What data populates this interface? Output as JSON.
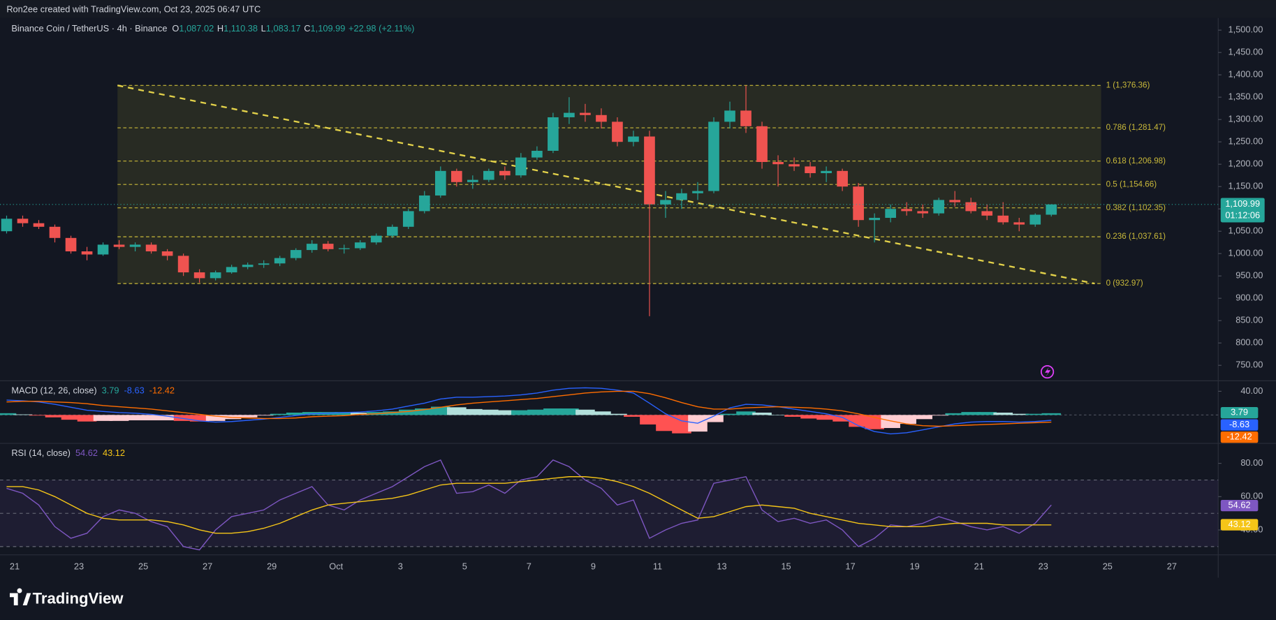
{
  "header": {
    "credit": "Ron2ee created with TradingView.com, Oct 23, 2025 06:47 UTC"
  },
  "footer": {
    "brand": "TradingView"
  },
  "time_axis": {
    "xlim": [
      20.544,
      58.443
    ],
    "xticks": [
      21,
      23,
      25,
      27,
      29,
      {
        "value": 31,
        "label": "Oct"
      },
      {
        "value": 33,
        "label": "3"
      },
      {
        "value": 35,
        "label": "5"
      },
      {
        "value": 37,
        "label": "7"
      },
      {
        "value": 39,
        "label": "9"
      },
      {
        "value": 41,
        "label": "11"
      },
      {
        "value": 43,
        "label": "13"
      },
      {
        "value": 45,
        "label": "15"
      },
      {
        "value": 47,
        "label": "17"
      },
      {
        "value": 49,
        "label": "19"
      },
      {
        "value": 51,
        "label": "21"
      },
      {
        "value": 53,
        "label": "23"
      },
      {
        "value": 55,
        "label": "25"
      },
      {
        "value": 57,
        "label": "27"
      }
    ]
  },
  "chart_data": [
    {
      "type": "candlestick",
      "legend": {
        "symbol": "Binance Coin / TetherUS · 4h · Binance",
        "ohlc": [
          {
            "key": "O",
            "value": "1,087.02"
          },
          {
            "key": "H",
            "value": "1,110.38"
          },
          {
            "key": "L",
            "value": "1,083.17"
          },
          {
            "key": "C",
            "value": "1,109.99"
          }
        ],
        "change": "+22.98 (+2.11%)"
      },
      "up_color": "#26a69a",
      "down_color": "#ef5350",
      "ylim": [
        715.4,
        1527.3
      ],
      "yticks": [
        {
          "value": 750,
          "label": "750.00"
        },
        {
          "value": 800,
          "label": "800.00"
        },
        {
          "value": 850,
          "label": "850.00"
        },
        {
          "value": 900,
          "label": "900.00"
        },
        {
          "value": 950,
          "label": "950.00"
        },
        {
          "value": 1000,
          "label": "1,000.00"
        },
        {
          "value": 1050,
          "label": "1,050.00"
        },
        {
          "value": 1100,
          "label": "1,100.00"
        },
        {
          "value": 1150,
          "label": "1,150.00"
        },
        {
          "value": 1200,
          "label": "1,200.00"
        },
        {
          "value": 1250,
          "label": "1,250.00"
        },
        {
          "value": 1300,
          "label": "1,300.00"
        },
        {
          "value": 1350,
          "label": "1,350.00"
        },
        {
          "value": 1400,
          "label": "1,400.00"
        },
        {
          "value": 1450,
          "label": "1,450.00"
        },
        {
          "value": 1500,
          "label": "1,500.00"
        }
      ],
      "x": [
        20.5,
        21,
        21.5,
        22,
        22.5,
        23,
        23.5,
        24,
        24.5,
        25,
        25.5,
        26,
        26.5,
        27,
        27.5,
        28,
        28.5,
        29,
        29.5,
        30,
        30.5,
        31,
        31.5,
        32,
        32.5,
        33,
        33.5,
        34,
        34.5,
        35,
        35.5,
        36,
        36.5,
        37,
        37.5,
        38,
        38.5,
        39,
        39.5,
        40,
        40.5,
        41,
        41.5,
        42,
        42.5,
        43,
        43.5,
        44,
        44.5,
        45,
        45.5,
        46,
        46.5,
        47,
        47.5,
        48,
        48.5,
        49,
        49.5,
        50,
        50.5,
        51,
        51.5,
        52,
        52.5,
        53
      ],
      "open": [
        1050,
        1078,
        1068,
        1060,
        1035,
        1005,
        998,
        1020,
        1015,
        1020,
        1005,
        995,
        958,
        945,
        958,
        970,
        975,
        978,
        990,
        1008,
        1022,
        1010,
        1012,
        1025,
        1040,
        1060,
        1095,
        1130,
        1185,
        1160,
        1165,
        1185,
        1175,
        1215,
        1230,
        1305,
        1315,
        1310,
        1295,
        1250,
        1262,
        1110,
        1120,
        1135,
        1140,
        1295,
        1320,
        1285,
        1205,
        1200,
        1195,
        1180,
        1185,
        1150,
        1075,
        1080,
        1100,
        1095,
        1090,
        1120,
        1115,
        1095,
        1085,
        1070,
        1065,
        1087
      ],
      "high": [
        1085,
        1085,
        1075,
        1065,
        1040,
        1015,
        1025,
        1030,
        1025,
        1025,
        1010,
        1000,
        965,
        962,
        975,
        980,
        985,
        995,
        1012,
        1030,
        1028,
        1020,
        1030,
        1045,
        1065,
        1100,
        1140,
        1195,
        1190,
        1175,
        1190,
        1195,
        1225,
        1240,
        1315,
        1350,
        1335,
        1325,
        1305,
        1275,
        1275,
        1140,
        1145,
        1160,
        1305,
        1340,
        1376,
        1295,
        1220,
        1215,
        1205,
        1195,
        1190,
        1158,
        1090,
        1110,
        1115,
        1110,
        1125,
        1140,
        1125,
        1110,
        1115,
        1080,
        1090,
        1110
      ],
      "low": [
        1045,
        1060,
        1055,
        1025,
        1000,
        985,
        995,
        1010,
        1005,
        1000,
        985,
        950,
        935,
        940,
        955,
        965,
        968,
        972,
        985,
        1002,
        1005,
        1000,
        1008,
        1020,
        1035,
        1055,
        1090,
        1125,
        1150,
        1145,
        1160,
        1165,
        1170,
        1210,
        1225,
        1290,
        1295,
        1280,
        1240,
        1240,
        860,
        1080,
        1100,
        1120,
        1135,
        1280,
        1270,
        1190,
        1150,
        1185,
        1170,
        1160,
        1140,
        1060,
        1025,
        1070,
        1085,
        1080,
        1085,
        1105,
        1090,
        1075,
        1065,
        1050,
        1060,
        1083
      ],
      "close": [
        1078,
        1068,
        1060,
        1035,
        1005,
        998,
        1020,
        1015,
        1020,
        1005,
        995,
        958,
        945,
        958,
        970,
        975,
        978,
        990,
        1008,
        1022,
        1010,
        1012,
        1025,
        1040,
        1060,
        1095,
        1130,
        1185,
        1160,
        1165,
        1185,
        1175,
        1215,
        1230,
        1305,
        1315,
        1310,
        1295,
        1250,
        1262,
        1110,
        1120,
        1135,
        1140,
        1295,
        1320,
        1285,
        1205,
        1200,
        1195,
        1180,
        1185,
        1150,
        1075,
        1080,
        1100,
        1095,
        1090,
        1120,
        1115,
        1095,
        1085,
        1070,
        1065,
        1087,
        1110
      ],
      "fib": {
        "x": [
          24.2,
          54.8
        ],
        "color": "#c9b93a",
        "fill": "rgba(120,118,40,0.22)",
        "levels": [
          {
            "value": 1376.36,
            "label": "1 (1,376.36)"
          },
          {
            "value": 1281.47,
            "label": "0.786 (1,281.47)"
          },
          {
            "value": 1206.98,
            "label": "0.618 (1,206.98)"
          },
          {
            "value": 1154.66,
            "label": "0.5 (1,154.66)"
          },
          {
            "value": 1102.35,
            "label": "0.382 (1,102.35)"
          },
          {
            "value": 1037.61,
            "label": "0.236 (1,037.61)"
          },
          {
            "value": 932.97,
            "label": "0 (932.97)"
          }
        ]
      },
      "trendline": {
        "x": [
          24.2,
          54.6
        ],
        "y": [
          1376.36,
          932.97
        ],
        "color": "#e3d24a"
      },
      "last_price": {
        "value": 1109.99,
        "label": "1,109.99",
        "countdown": "01:12:06",
        "color": "#26a69a"
      }
    },
    {
      "type": "macd",
      "title": "MACD (12, 26, close)",
      "ylim": [
        -48,
        55
      ],
      "yticks": [
        {
          "value": 40,
          "label": "40.00"
        }
      ],
      "macd_line": {
        "color": "#2962ff",
        "values": [
          25,
          24,
          22,
          18,
          13,
          8,
          6,
          4,
          3,
          1,
          -2,
          -6,
          -10,
          -12,
          -11,
          -9,
          -7,
          -4,
          -1,
          2,
          3,
          4,
          5,
          7,
          10,
          15,
          20,
          27,
          30,
          30,
          31,
          32,
          34,
          37,
          42,
          45,
          46,
          45,
          42,
          37,
          20,
          2,
          -10,
          -14,
          -2,
          12,
          18,
          17,
          14,
          10,
          6,
          2,
          -4,
          -18,
          -28,
          -32,
          -30,
          -25,
          -20,
          -15,
          -12,
          -11,
          -11,
          -12,
          -11,
          -9
        ]
      },
      "signal": {
        "color": "#ff6d00",
        "values": [
          22,
          23,
          23,
          22,
          21,
          19,
          16,
          14,
          12,
          10,
          7,
          4,
          1,
          -2,
          -4,
          -5,
          -6,
          -6,
          -5,
          -3,
          -2,
          -1,
          1,
          2,
          4,
          6,
          9,
          13,
          17,
          20,
          22,
          24,
          26,
          28,
          31,
          34,
          37,
          39,
          40,
          40,
          36,
          29,
          21,
          14,
          10,
          10,
          12,
          13,
          14,
          13,
          12,
          10,
          7,
          2,
          -4,
          -10,
          -15,
          -18,
          -19,
          -18,
          -17,
          -16,
          -15,
          -14,
          -13,
          -12
        ]
      },
      "histogram": {
        "colors": [
          "#26a69a",
          "#b2dfdb",
          "#ffcdd2",
          "#ff5252"
        ],
        "values": [
          3,
          1,
          -1,
          -4,
          -8,
          -11,
          -10,
          -10,
          -9,
          -9,
          -9,
          -10,
          -11,
          -10,
          -7,
          -4,
          -1,
          2,
          4,
          5,
          5,
          5,
          4,
          5,
          6,
          9,
          11,
          14,
          13,
          10,
          9,
          8,
          8,
          9,
          11,
          11,
          9,
          6,
          2,
          -3,
          -16,
          -27,
          -31,
          -28,
          -12,
          2,
          6,
          4,
          0,
          -3,
          -6,
          -8,
          -11,
          -20,
          -24,
          -22,
          -15,
          -7,
          -1,
          3,
          5,
          5,
          4,
          2,
          2,
          3
        ]
      },
      "last_values": [
        {
          "value": 3.79,
          "label": "3.79",
          "color": "#26a69a"
        },
        {
          "value": -8.63,
          "label": "-8.63",
          "color": "#2962ff"
        },
        {
          "value": -12.42,
          "label": "-12.42",
          "color": "#ff6d00"
        }
      ]
    },
    {
      "type": "rsi",
      "title": "RSI (14, close)",
      "ylim": [
        26,
        90.5
      ],
      "yticks": [
        {
          "value": 80,
          "label": "80.00"
        },
        {
          "value": 60,
          "label": "60.00"
        },
        {
          "value": 40,
          "label": "40.00"
        }
      ],
      "bands": [
        70,
        50,
        30
      ],
      "band_fill": "rgba(126,87,194,0.10)",
      "rsi": {
        "color": "#7e57c2",
        "values": [
          65,
          62,
          55,
          42,
          35,
          38,
          48,
          52,
          50,
          45,
          42,
          30,
          28,
          40,
          48,
          50,
          52,
          58,
          62,
          66,
          55,
          52,
          58,
          62,
          66,
          72,
          78,
          82,
          62,
          63,
          67,
          62,
          70,
          72,
          82,
          78,
          70,
          65,
          55,
          58,
          35,
          40,
          44,
          46,
          68,
          70,
          72,
          52,
          45,
          47,
          44,
          46,
          40,
          30,
          35,
          43,
          42,
          44,
          48,
          45,
          42,
          40,
          42,
          38,
          44,
          55
        ]
      },
      "rsi_ma": {
        "color": "#f5c518",
        "values": [
          66,
          66,
          64,
          60,
          55,
          50,
          47,
          46,
          46,
          46,
          45,
          43,
          40,
          38,
          38,
          39,
          41,
          44,
          48,
          52,
          55,
          56,
          57,
          58,
          59,
          61,
          64,
          67,
          68,
          68,
          68,
          68,
          69,
          70,
          71,
          72,
          72,
          71,
          69,
          66,
          62,
          57,
          52,
          47,
          48,
          51,
          54,
          55,
          54,
          53,
          50,
          48,
          46,
          44,
          43,
          42,
          42,
          42,
          43,
          44,
          44,
          44,
          43,
          43,
          43,
          43
        ]
      },
      "last_values": [
        {
          "value": 54.62,
          "label": "54.62",
          "color": "#7e57c2"
        },
        {
          "value": 43.12,
          "label": "43.12",
          "color": "#f5c518"
        }
      ]
    }
  ]
}
